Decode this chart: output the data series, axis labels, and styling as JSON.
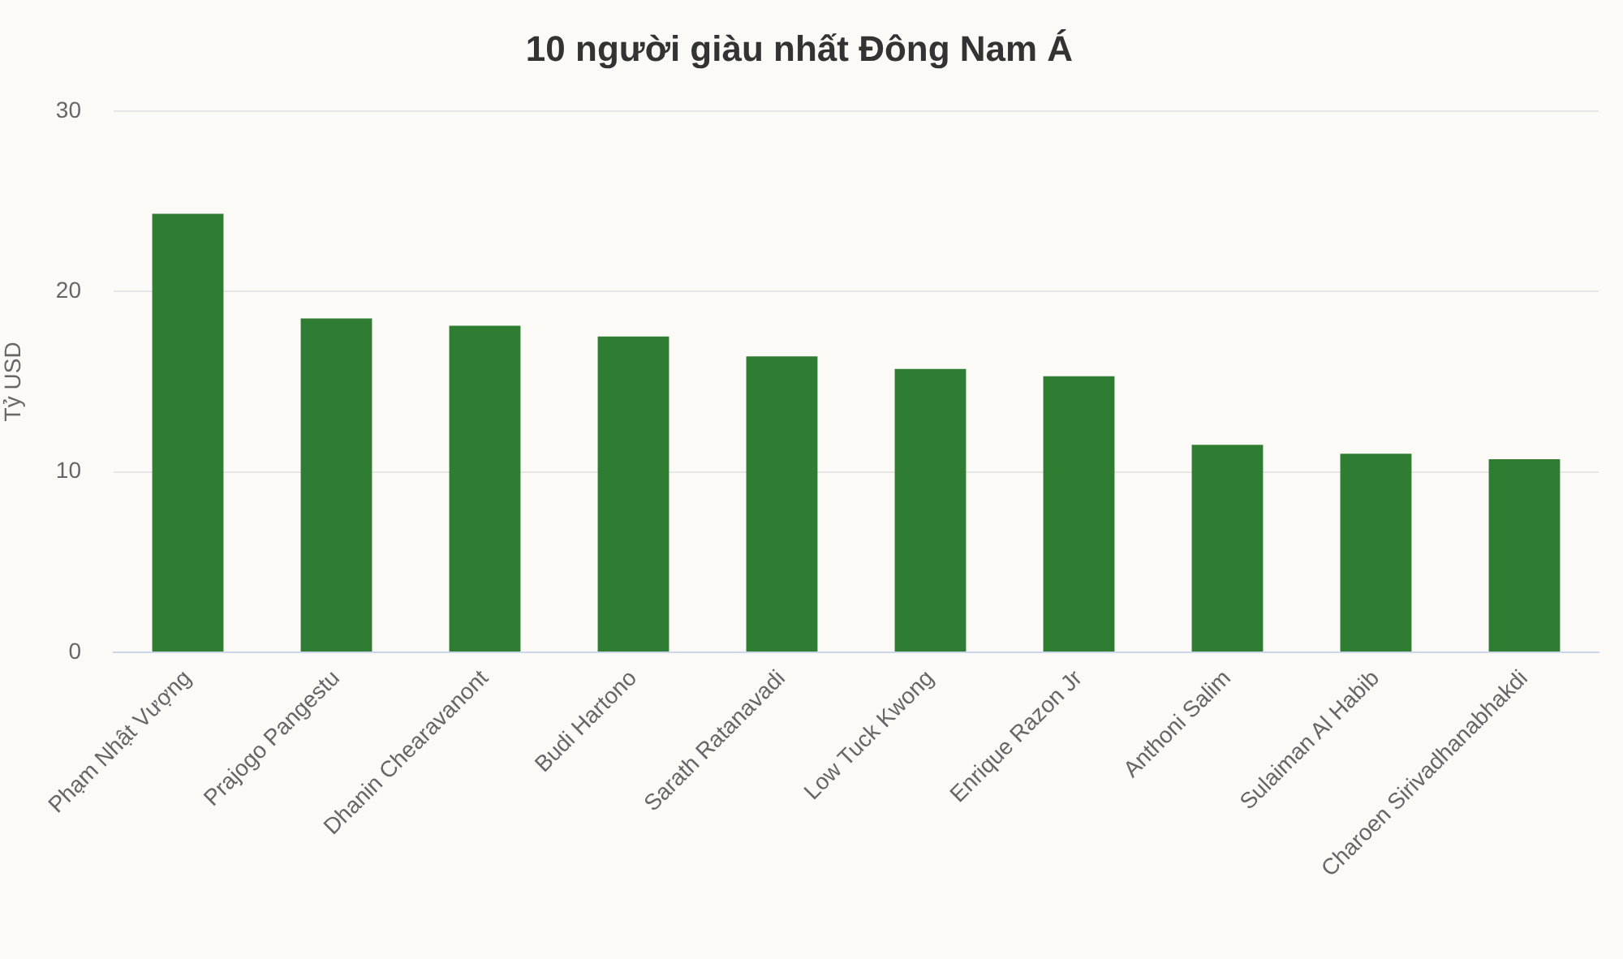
{
  "chart_data": {
    "type": "bar",
    "title": "10 người giàu nhất Đông Nam Á",
    "ylabel": "Tỷ USD",
    "categories": [
      "Phạm Nhật Vượng",
      "Prajogo Pangestu",
      "Dhanin Chearavanont",
      "Budi Hartono",
      "Sarath Ratanavadi",
      "Low Tuck Kwong",
      "Enrique Razon Jr",
      "Anthoni Salim",
      "Sulaiman Al Habib",
      "Charoen Sirivadhanabhakdi"
    ],
    "values": [
      24.3,
      18.5,
      18.1,
      17.5,
      16.4,
      15.7,
      15.3,
      11.5,
      11.0,
      10.7
    ],
    "color": "#2e7d32",
    "ylim": [
      0,
      30
    ],
    "yticks": [
      0,
      10,
      20,
      30
    ],
    "grid": "y"
  }
}
